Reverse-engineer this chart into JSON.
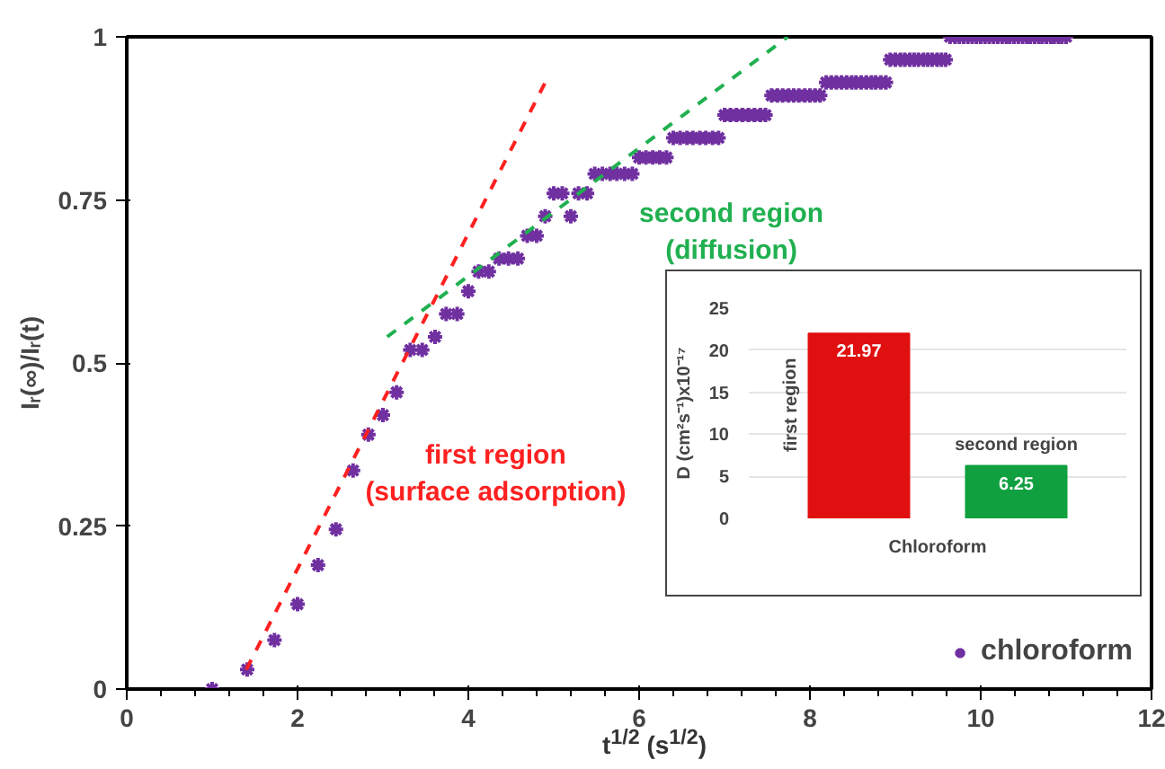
{
  "chart_data": [
    {
      "type": "scatter",
      "xlabel": "t$^{1/2}$ (s$^{1/2}$)",
      "ylabel": "Iᵣ(∞)/Iᵣ(t)",
      "xlim": [
        0,
        12
      ],
      "ylim": [
        0,
        1
      ],
      "xticks": [
        0,
        2,
        4,
        6,
        8,
        10,
        12
      ],
      "yticks": [
        0,
        {
          "value": 0.25,
          "label": "0.25"
        },
        {
          "value": 0.5,
          "label": "0.5"
        },
        {
          "value": 0.75,
          "label": "0.75"
        },
        1
      ],
      "grid": false,
      "legend": "bottom right",
      "series": [
        {
          "name": "chloroform",
          "color": "#7030a0",
          "marker": "cross",
          "x": [
            1.0,
            1.41,
            1.73,
            2.0,
            2.24,
            2.45,
            2.65,
            2.83,
            3.0,
            3.16,
            3.32,
            3.46,
            3.61,
            3.74,
            3.87,
            4.0,
            4.12,
            4.24,
            4.36,
            4.47,
            4.58,
            4.69,
            4.8,
            4.9,
            5.0,
            5.1,
            5.2,
            5.29,
            5.39,
            5.48,
            5.57,
            5.66,
            5.74,
            5.83,
            5.92,
            6.0,
            6.08,
            6.16,
            6.24,
            6.32,
            6.4,
            6.48,
            6.56,
            6.63,
            6.71,
            6.78,
            6.86,
            6.93,
            7.0,
            7.07,
            7.14,
            7.21,
            7.28,
            7.35,
            7.42,
            7.48,
            7.55,
            7.62,
            7.68,
            7.75,
            7.81,
            7.87,
            7.94,
            8.0,
            8.06,
            8.12,
            8.19,
            8.25,
            8.31,
            8.37,
            8.43,
            8.49,
            8.54,
            8.6,
            8.66,
            8.72,
            8.77,
            8.83,
            8.89,
            8.94,
            9.0,
            9.06,
            9.11,
            9.17,
            9.22,
            9.27,
            9.33,
            9.38,
            9.43,
            9.49,
            9.54,
            9.59,
            9.64,
            9.7,
            9.75,
            9.8,
            9.85,
            9.9,
            9.95,
            10.0,
            10.05,
            10.1,
            10.15,
            10.2,
            10.25,
            10.3,
            10.34,
            10.39,
            10.44,
            10.49,
            10.54,
            10.58,
            10.63,
            10.68,
            10.72,
            10.77,
            10.82,
            10.86,
            10.91,
            10.95,
            11.0
          ],
          "values": [
            0,
            0.03,
            0.075,
            0.13,
            0.19,
            0.245,
            0.335,
            0.39,
            0.42,
            0.455,
            0.52,
            0.52,
            0.54,
            0.575,
            0.575,
            0.61,
            0.64,
            0.64,
            0.66,
            0.66,
            0.66,
            0.695,
            0.695,
            0.725,
            0.76,
            0.76,
            0.725,
            0.76,
            0.76,
            0.79,
            0.79,
            0.79,
            0.79,
            0.79,
            0.79,
            0.815,
            0.815,
            0.815,
            0.815,
            0.815,
            0.845,
            0.845,
            0.845,
            0.845,
            0.845,
            0.845,
            0.845,
            0.845,
            0.88,
            0.88,
            0.88,
            0.88,
            0.88,
            0.88,
            0.88,
            0.88,
            0.91,
            0.91,
            0.91,
            0.91,
            0.91,
            0.91,
            0.91,
            0.91,
            0.91,
            0.91,
            0.93,
            0.93,
            0.93,
            0.93,
            0.93,
            0.93,
            0.93,
            0.93,
            0.93,
            0.93,
            0.93,
            0.93,
            0.93,
            0.965,
            0.965,
            0.965,
            0.965,
            0.965,
            0.965,
            0.965,
            0.965,
            0.965,
            0.965,
            0.965,
            0.965,
            0.965,
            1,
            1,
            1,
            1,
            1,
            1,
            1,
            1,
            1,
            1,
            1,
            1,
            1,
            1,
            1,
            1,
            1,
            1,
            1,
            1,
            1,
            1,
            1,
            1,
            1,
            1,
            1,
            1,
            1
          ]
        },
        {
          "type": "line",
          "color": "#ff2020",
          "line_style": "dashed",
          "x": [
            1.4,
            4.9
          ],
          "values": [
            0.03,
            0.93
          ]
        },
        {
          "type": "line",
          "color": "#20b050",
          "line_style": "dashed",
          "x": [
            3.05,
            7.74
          ],
          "values": [
            0.54,
            1.0
          ]
        }
      ],
      "annotations": [
        "first region\n(surface adsorption)",
        "second region\n(diffusion)"
      ]
    },
    {
      "type": "bar",
      "ylabel": "D (cm²s⁻¹)x10⁻¹⁷",
      "categories": [
        "Chloroform"
      ],
      "ylim": [
        0,
        25
      ],
      "yticks": [
        0,
        5,
        10,
        15,
        20,
        25
      ],
      "grid": "y",
      "data_labels": true,
      "series": [
        {
          "name": "first region",
          "color": "#e01010",
          "values": [
            21.97
          ]
        },
        {
          "name": "second region",
          "color": "#10a040",
          "values": [
            6.25
          ]
        }
      ]
    }
  ]
}
